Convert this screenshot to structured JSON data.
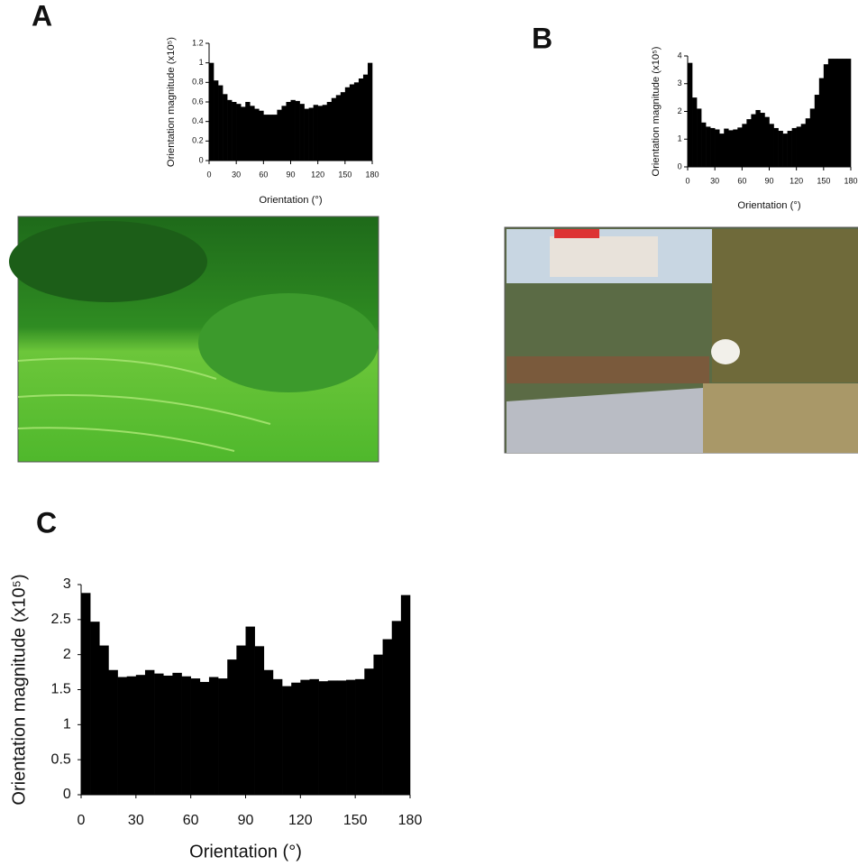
{
  "chart_data": [
    {
      "type": "histogram",
      "label": "A",
      "y_label": "Orientation magnitude (x10⁵)",
      "x_label": "Orientation (°)",
      "bins": [
        0,
        5,
        10,
        15,
        20,
        25,
        30,
        35,
        40,
        45,
        50,
        55,
        60,
        65,
        70,
        75,
        80,
        85,
        90,
        95,
        100,
        105,
        110,
        115,
        120,
        125,
        130,
        135,
        140,
        145,
        150,
        155,
        160,
        165,
        170,
        175,
        180
      ],
      "values": [
        1.0,
        0.82,
        0.77,
        0.68,
        0.62,
        0.6,
        0.58,
        0.55,
        0.6,
        0.56,
        0.53,
        0.51,
        0.47,
        0.47,
        0.47,
        0.52,
        0.56,
        0.6,
        0.62,
        0.61,
        0.58,
        0.53,
        0.54,
        0.57,
        0.56,
        0.57,
        0.6,
        0.64,
        0.67,
        0.7,
        0.75,
        0.78,
        0.8,
        0.84,
        0.88,
        1.0
      ],
      "color": "#000000",
      "xlim": [
        0,
        180
      ],
      "xticks": [
        0,
        30,
        60,
        90,
        120,
        150,
        180
      ],
      "ylim": [
        0,
        1.2
      ],
      "yticks": [
        0,
        0.2,
        0.4,
        0.6,
        0.8,
        1,
        1.2
      ]
    },
    {
      "type": "histogram",
      "label": "B",
      "y_label": "Orientation magnitude (x10⁵)",
      "x_label": "Orientation (°)",
      "bins": [
        0,
        5,
        10,
        15,
        20,
        25,
        30,
        35,
        40,
        45,
        50,
        55,
        60,
        65,
        70,
        75,
        80,
        85,
        90,
        95,
        100,
        105,
        110,
        115,
        120,
        125,
        130,
        135,
        140,
        145,
        150,
        155,
        160,
        165,
        170,
        175,
        180
      ],
      "values": [
        3.75,
        2.5,
        2.1,
        1.6,
        1.45,
        1.4,
        1.35,
        1.2,
        1.38,
        1.32,
        1.35,
        1.42,
        1.55,
        1.72,
        1.9,
        2.05,
        1.95,
        1.8,
        1.55,
        1.4,
        1.3,
        1.2,
        1.3,
        1.4,
        1.45,
        1.55,
        1.75,
        2.1,
        2.6,
        3.2,
        3.7,
        3.9,
        3.9,
        3.9,
        3.9,
        3.9
      ],
      "color": "#000000",
      "xlim": [
        0,
        180
      ],
      "xticks": [
        0,
        30,
        60,
        90,
        120,
        150,
        180
      ],
      "ylim": [
        0,
        4
      ],
      "yticks": [
        0,
        1,
        2,
        3,
        4
      ]
    },
    {
      "type": "histogram",
      "label": "C",
      "y_label": "Orientation magnitude (x10⁵)",
      "x_label": "Orientation (°)",
      "bins": [
        0,
        5,
        10,
        15,
        20,
        25,
        30,
        35,
        40,
        45,
        50,
        55,
        60,
        65,
        70,
        75,
        80,
        85,
        90,
        95,
        100,
        105,
        110,
        115,
        120,
        125,
        130,
        135,
        140,
        145,
        150,
        155,
        160,
        165,
        170,
        175,
        180
      ],
      "values": [
        2.88,
        2.47,
        2.13,
        1.78,
        1.68,
        1.69,
        1.71,
        1.78,
        1.73,
        1.7,
        1.74,
        1.69,
        1.66,
        1.61,
        1.68,
        1.66,
        1.93,
        2.13,
        2.4,
        2.12,
        1.78,
        1.65,
        1.55,
        1.6,
        1.64,
        1.65,
        1.62,
        1.63,
        1.63,
        1.64,
        1.65,
        1.8,
        2.0,
        2.22,
        2.48,
        2.85
      ],
      "color": "#000000",
      "xlim": [
        0,
        180
      ],
      "xticks": [
        0,
        30,
        60,
        90,
        120,
        150,
        180
      ],
      "ylim": [
        0,
        3
      ],
      "yticks": [
        0,
        0.5,
        1,
        1.5,
        2,
        2.5,
        3
      ]
    }
  ]
}
